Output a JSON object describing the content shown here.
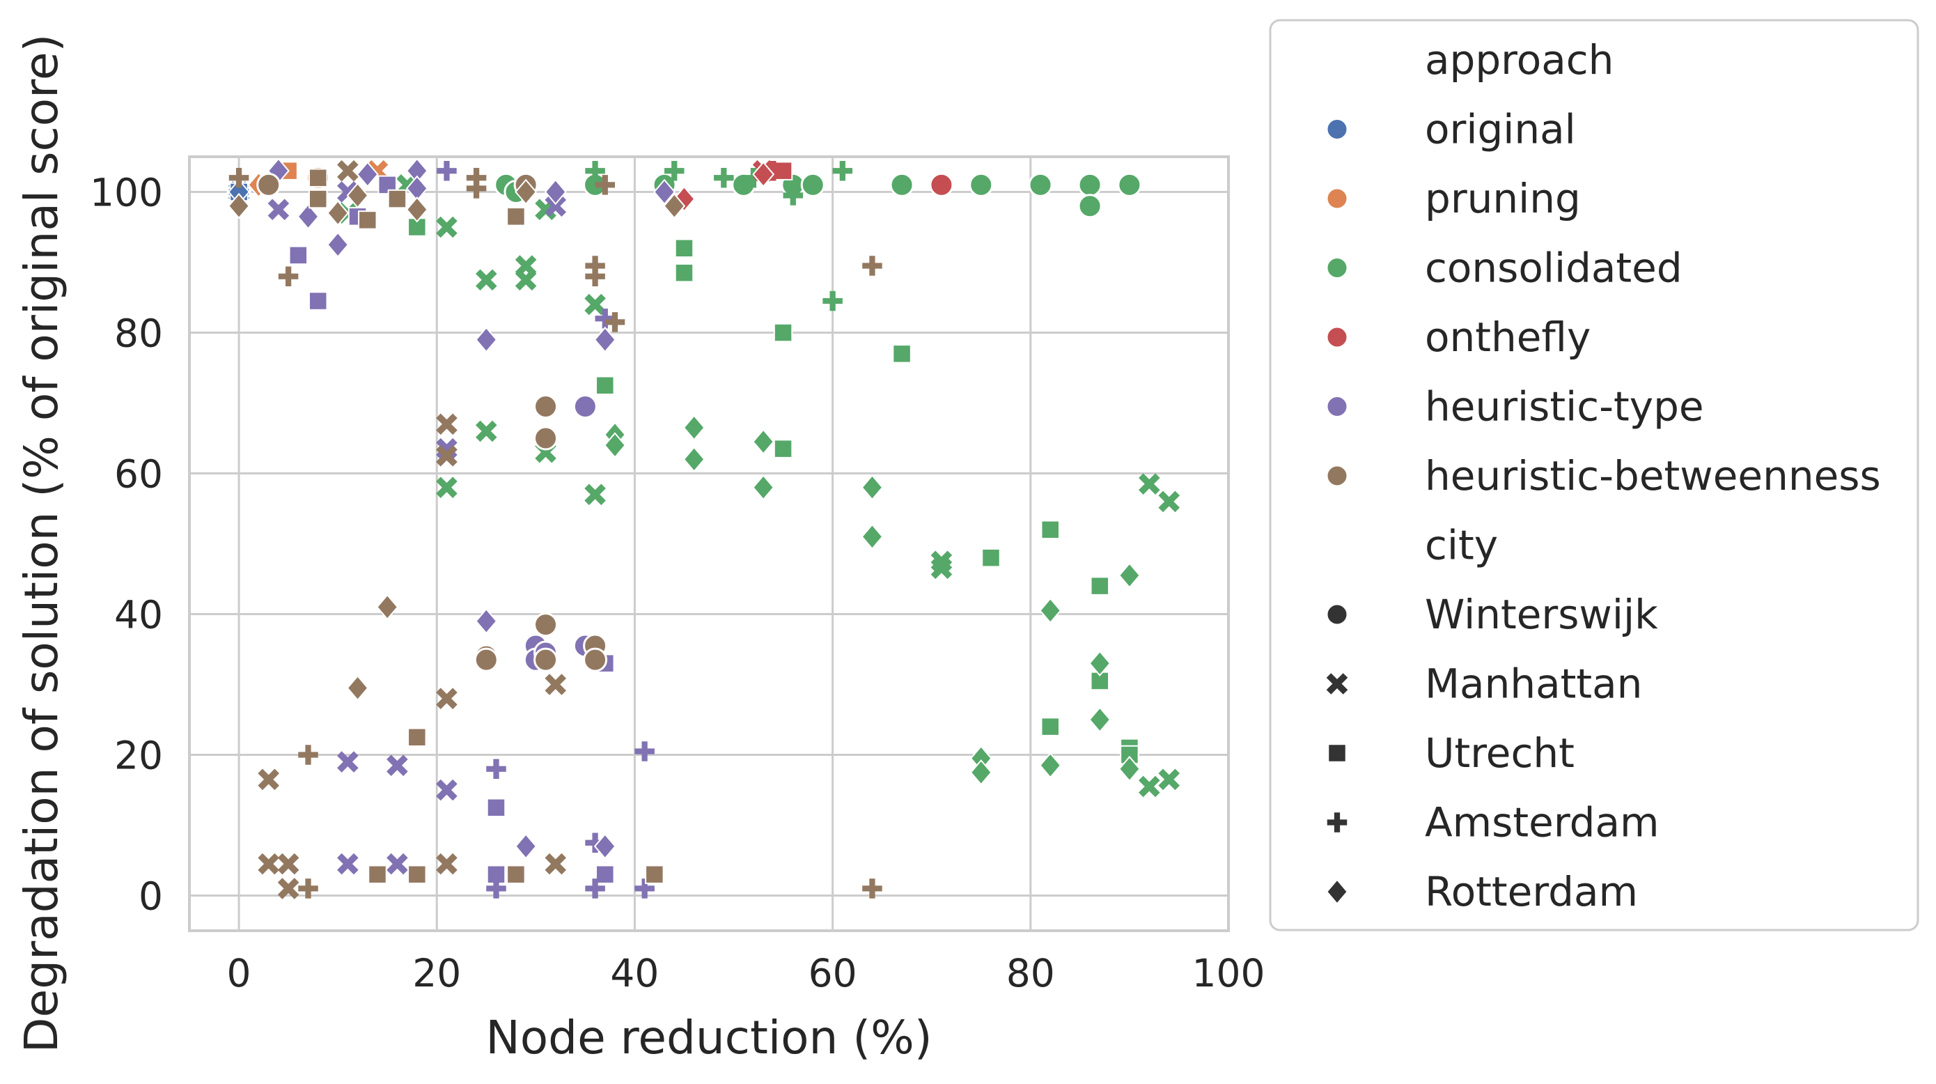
{
  "chart_data": {
    "type": "scatter",
    "title": "",
    "xlabel": "Node reduction (%)",
    "ylabel": "Degradation of solution (% of original score)",
    "xlim": [
      -5,
      100
    ],
    "ylim": [
      -5,
      105
    ],
    "xticks": [
      "0",
      "20",
      "40",
      "60",
      "80",
      "100"
    ],
    "yticks": [
      "0",
      "20",
      "40",
      "60",
      "80",
      "100"
    ],
    "grid": true,
    "legend_placement": "outside-right",
    "legend": {
      "hue_title": "approach",
      "style_title": "city",
      "approaches": [
        {
          "name": "original",
          "color": "#4c72b0"
        },
        {
          "name": "pruning",
          "color": "#dd8452"
        },
        {
          "name": "consolidated",
          "color": "#55a868"
        },
        {
          "name": "onthefly",
          "color": "#c44e52"
        },
        {
          "name": "heuristic-type",
          "color": "#8172b3"
        },
        {
          "name": "heuristic-betweenness",
          "color": "#937860"
        }
      ],
      "cities": [
        {
          "name": "Winterswijk",
          "marker": "circle"
        },
        {
          "name": "Manhattan",
          "marker": "x"
        },
        {
          "name": "Utrecht",
          "marker": "square"
        },
        {
          "name": "Amsterdam",
          "marker": "plus"
        },
        {
          "name": "Rotterdam",
          "marker": "diamond"
        }
      ]
    },
    "series": [
      {
        "approach": "original",
        "city": "Winterswijk",
        "points": [
          [
            0,
            100
          ]
        ]
      },
      {
        "approach": "original",
        "city": "Manhattan",
        "points": [
          [
            0,
            100
          ]
        ]
      },
      {
        "approach": "original",
        "city": "Utrecht",
        "points": [
          [
            0,
            100
          ]
        ]
      },
      {
        "approach": "original",
        "city": "Amsterdam",
        "points": [
          [
            0,
            100
          ]
        ]
      },
      {
        "approach": "original",
        "city": "Rotterdam",
        "points": [
          [
            0,
            100
          ]
        ]
      },
      {
        "approach": "pruning",
        "city": "Winterswijk",
        "points": [
          [
            3,
            101
          ]
        ]
      },
      {
        "approach": "pruning",
        "city": "Manhattan",
        "points": [
          [
            14,
            103
          ]
        ]
      },
      {
        "approach": "pruning",
        "city": "Utrecht",
        "points": [
          [
            5,
            103
          ]
        ]
      },
      {
        "approach": "pruning",
        "city": "Amsterdam",
        "points": [
          [
            8,
            102
          ]
        ]
      },
      {
        "approach": "pruning",
        "city": "Rotterdam",
        "points": [
          [
            2,
            101
          ]
        ]
      },
      {
        "approach": "consolidated",
        "city": "Winterswijk",
        "points": [
          [
            27,
            101
          ],
          [
            28,
            100
          ],
          [
            36,
            101
          ],
          [
            43,
            101
          ],
          [
            51,
            101
          ],
          [
            56,
            101
          ],
          [
            58,
            101
          ],
          [
            67,
            101
          ],
          [
            75,
            101
          ],
          [
            81,
            101
          ],
          [
            86,
            101
          ],
          [
            86,
            98
          ],
          [
            90,
            101
          ]
        ]
      },
      {
        "approach": "consolidated",
        "city": "Manhattan",
        "points": [
          [
            21,
            95
          ],
          [
            25,
            87.5
          ],
          [
            29,
            87.5
          ],
          [
            29,
            89.5
          ],
          [
            31,
            97.5
          ],
          [
            36,
            84
          ],
          [
            25,
            66
          ],
          [
            21,
            58
          ],
          [
            31,
            63
          ],
          [
            36,
            57
          ],
          [
            71,
            46.5
          ],
          [
            71,
            47.5
          ],
          [
            92,
            58.5
          ],
          [
            94,
            56
          ],
          [
            92,
            15.5
          ],
          [
            94,
            16.5
          ],
          [
            17,
            101
          ],
          [
            11,
            97
          ]
        ]
      },
      {
        "approach": "consolidated",
        "city": "Utrecht",
        "points": [
          [
            18,
            95
          ],
          [
            45,
            92
          ],
          [
            45,
            88.5
          ],
          [
            55,
            80
          ],
          [
            67,
            77
          ],
          [
            37,
            72.5
          ],
          [
            55,
            63.5
          ],
          [
            76,
            48
          ],
          [
            82,
            52
          ],
          [
            87,
            44
          ],
          [
            87,
            30.5
          ],
          [
            82,
            24
          ],
          [
            90,
            21
          ],
          [
            90,
            20
          ]
        ]
      },
      {
        "approach": "consolidated",
        "city": "Amsterdam",
        "points": [
          [
            49,
            102
          ],
          [
            52,
            102
          ],
          [
            56,
            99.5
          ],
          [
            60,
            84.5
          ],
          [
            61,
            103
          ],
          [
            36,
            103
          ],
          [
            44,
            103
          ]
        ]
      },
      {
        "approach": "consolidated",
        "city": "Rotterdam",
        "points": [
          [
            38,
            65.5
          ],
          [
            38,
            64
          ],
          [
            46,
            66.5
          ],
          [
            46,
            62
          ],
          [
            53,
            64.5
          ],
          [
            53,
            58
          ],
          [
            64,
            58
          ],
          [
            64,
            51
          ],
          [
            75,
            19.5
          ],
          [
            75,
            17.5
          ],
          [
            82,
            40.5
          ],
          [
            82,
            18.5
          ],
          [
            87,
            33
          ],
          [
            87,
            25
          ],
          [
            90,
            45.5
          ],
          [
            90,
            18
          ]
        ]
      },
      {
        "approach": "onthefly",
        "city": "Winterswijk",
        "points": [
          [
            71,
            101
          ]
        ]
      },
      {
        "approach": "onthefly",
        "city": "Manhattan",
        "points": [
          [
            53,
            103
          ]
        ]
      },
      {
        "approach": "onthefly",
        "city": "Utrecht",
        "points": [
          [
            55,
            103
          ]
        ]
      },
      {
        "approach": "onthefly",
        "city": "Amsterdam",
        "points": [
          [
            54,
            103
          ]
        ]
      },
      {
        "approach": "onthefly",
        "city": "Rotterdam",
        "points": [
          [
            45,
            99
          ],
          [
            53,
            102.5
          ]
        ]
      },
      {
        "approach": "heuristic-type",
        "city": "Winterswijk",
        "points": [
          [
            35,
            69.5
          ],
          [
            30,
            35.5
          ],
          [
            30,
            33.5
          ],
          [
            31,
            34.5
          ],
          [
            35,
            35.5
          ]
        ]
      },
      {
        "approach": "heuristic-type",
        "city": "Manhattan",
        "points": [
          [
            4,
            97.5
          ],
          [
            11,
            100
          ],
          [
            32,
            98
          ],
          [
            21,
            63.5
          ],
          [
            21,
            62.5
          ],
          [
            11,
            19
          ],
          [
            16,
            18.5
          ],
          [
            21,
            15
          ],
          [
            11,
            4.5
          ],
          [
            16,
            4.5
          ]
        ]
      },
      {
        "approach": "heuristic-type",
        "city": "Utrecht",
        "points": [
          [
            6,
            91
          ],
          [
            8,
            84.5
          ],
          [
            12,
            96.5
          ],
          [
            15,
            101
          ],
          [
            37,
            33
          ],
          [
            26,
            12.5
          ],
          [
            26,
            3
          ],
          [
            37,
            3
          ]
        ]
      },
      {
        "approach": "heuristic-type",
        "city": "Amsterdam",
        "points": [
          [
            21,
            103
          ],
          [
            37,
            82
          ],
          [
            26,
            18
          ],
          [
            41,
            20.5
          ],
          [
            26,
            1
          ],
          [
            36,
            1
          ],
          [
            41,
            1
          ],
          [
            36,
            7.5
          ]
        ]
      },
      {
        "approach": "heuristic-type",
        "city": "Rotterdam",
        "points": [
          [
            4,
            103
          ],
          [
            7,
            96.5
          ],
          [
            10,
            92.5
          ],
          [
            13,
            102.5
          ],
          [
            18,
            103
          ],
          [
            18,
            100.5
          ],
          [
            32,
            100
          ],
          [
            43,
            100
          ],
          [
            25,
            79
          ],
          [
            37,
            79
          ],
          [
            25,
            39
          ],
          [
            29,
            7
          ],
          [
            37,
            7
          ]
        ]
      },
      {
        "approach": "heuristic-betweenness",
        "city": "Winterswijk",
        "points": [
          [
            3,
            101
          ],
          [
            29,
            101
          ],
          [
            31,
            69.5
          ],
          [
            31,
            65
          ],
          [
            31,
            38.5
          ],
          [
            25,
            34
          ],
          [
            25,
            33.5
          ],
          [
            31,
            33.5
          ],
          [
            36,
            35.5
          ],
          [
            36,
            33.5
          ]
        ]
      },
      {
        "approach": "heuristic-betweenness",
        "city": "Manhattan",
        "points": [
          [
            11,
            103
          ],
          [
            21,
            67
          ],
          [
            21,
            62.5
          ],
          [
            21,
            28
          ],
          [
            32,
            30
          ],
          [
            3,
            16.5
          ],
          [
            3,
            4.5
          ],
          [
            5,
            4.5
          ],
          [
            5,
            1
          ],
          [
            21,
            4.5
          ],
          [
            32,
            4.5
          ]
        ]
      },
      {
        "approach": "heuristic-betweenness",
        "city": "Utrecht",
        "points": [
          [
            8,
            99
          ],
          [
            8,
            102
          ],
          [
            13,
            96
          ],
          [
            16,
            99
          ],
          [
            28,
            96.5
          ],
          [
            18,
            22.5
          ],
          [
            14,
            3
          ],
          [
            18,
            3
          ],
          [
            28,
            3
          ],
          [
            42,
            3
          ]
        ]
      },
      {
        "approach": "heuristic-betweenness",
        "city": "Amsterdam",
        "points": [
          [
            0,
            102
          ],
          [
            5,
            88
          ],
          [
            24,
            102
          ],
          [
            24,
            100.5
          ],
          [
            36,
            89.5
          ],
          [
            36,
            88
          ],
          [
            37,
            101
          ],
          [
            38,
            81.5
          ],
          [
            64,
            89.5
          ],
          [
            7,
            20
          ],
          [
            7,
            1
          ],
          [
            64,
            1
          ]
        ]
      },
      {
        "approach": "heuristic-betweenness",
        "city": "Rotterdam",
        "points": [
          [
            0,
            98
          ],
          [
            10,
            97
          ],
          [
            12,
            99.5
          ],
          [
            18,
            97.5
          ],
          [
            29,
            100
          ],
          [
            44,
            98
          ],
          [
            15,
            41
          ],
          [
            12,
            29.5
          ]
        ]
      }
    ]
  }
}
